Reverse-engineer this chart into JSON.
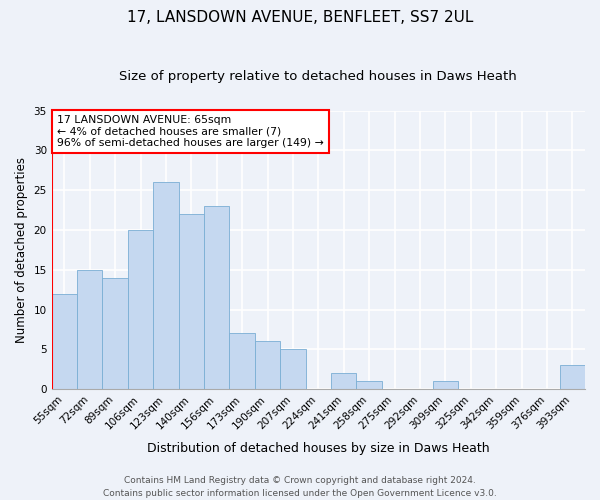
{
  "title": "17, LANSDOWN AVENUE, BENFLEET, SS7 2UL",
  "subtitle": "Size of property relative to detached houses in Daws Heath",
  "xlabel": "Distribution of detached houses by size in Daws Heath",
  "ylabel": "Number of detached properties",
  "bin_labels": [
    "55sqm",
    "72sqm",
    "89sqm",
    "106sqm",
    "123sqm",
    "140sqm",
    "156sqm",
    "173sqm",
    "190sqm",
    "207sqm",
    "224sqm",
    "241sqm",
    "258sqm",
    "275sqm",
    "292sqm",
    "309sqm",
    "325sqm",
    "342sqm",
    "359sqm",
    "376sqm",
    "393sqm"
  ],
  "bar_values": [
    12,
    15,
    14,
    20,
    26,
    22,
    23,
    7,
    6,
    5,
    0,
    2,
    1,
    0,
    0,
    1,
    0,
    0,
    0,
    0,
    3
  ],
  "bar_color": "#c5d8f0",
  "bar_edgecolor": "#7aaed4",
  "vline_color": "red",
  "ylim": [
    0,
    35
  ],
  "yticks": [
    0,
    5,
    10,
    15,
    20,
    25,
    30,
    35
  ],
  "annotation_box_text": "17 LANSDOWN AVENUE: 65sqm\n← 4% of detached houses are smaller (7)\n96% of semi-detached houses are larger (149) →",
  "annotation_box_color": "red",
  "footer_line1": "Contains HM Land Registry data © Crown copyright and database right 2024.",
  "footer_line2": "Contains public sector information licensed under the Open Government Licence v3.0.",
  "background_color": "#eef2f9",
  "grid_color": "#ffffff",
  "title_fontsize": 11,
  "subtitle_fontsize": 9.5,
  "xlabel_fontsize": 9,
  "ylabel_fontsize": 8.5,
  "tick_fontsize": 7.5,
  "annotation_fontsize": 7.8,
  "footer_fontsize": 6.5
}
